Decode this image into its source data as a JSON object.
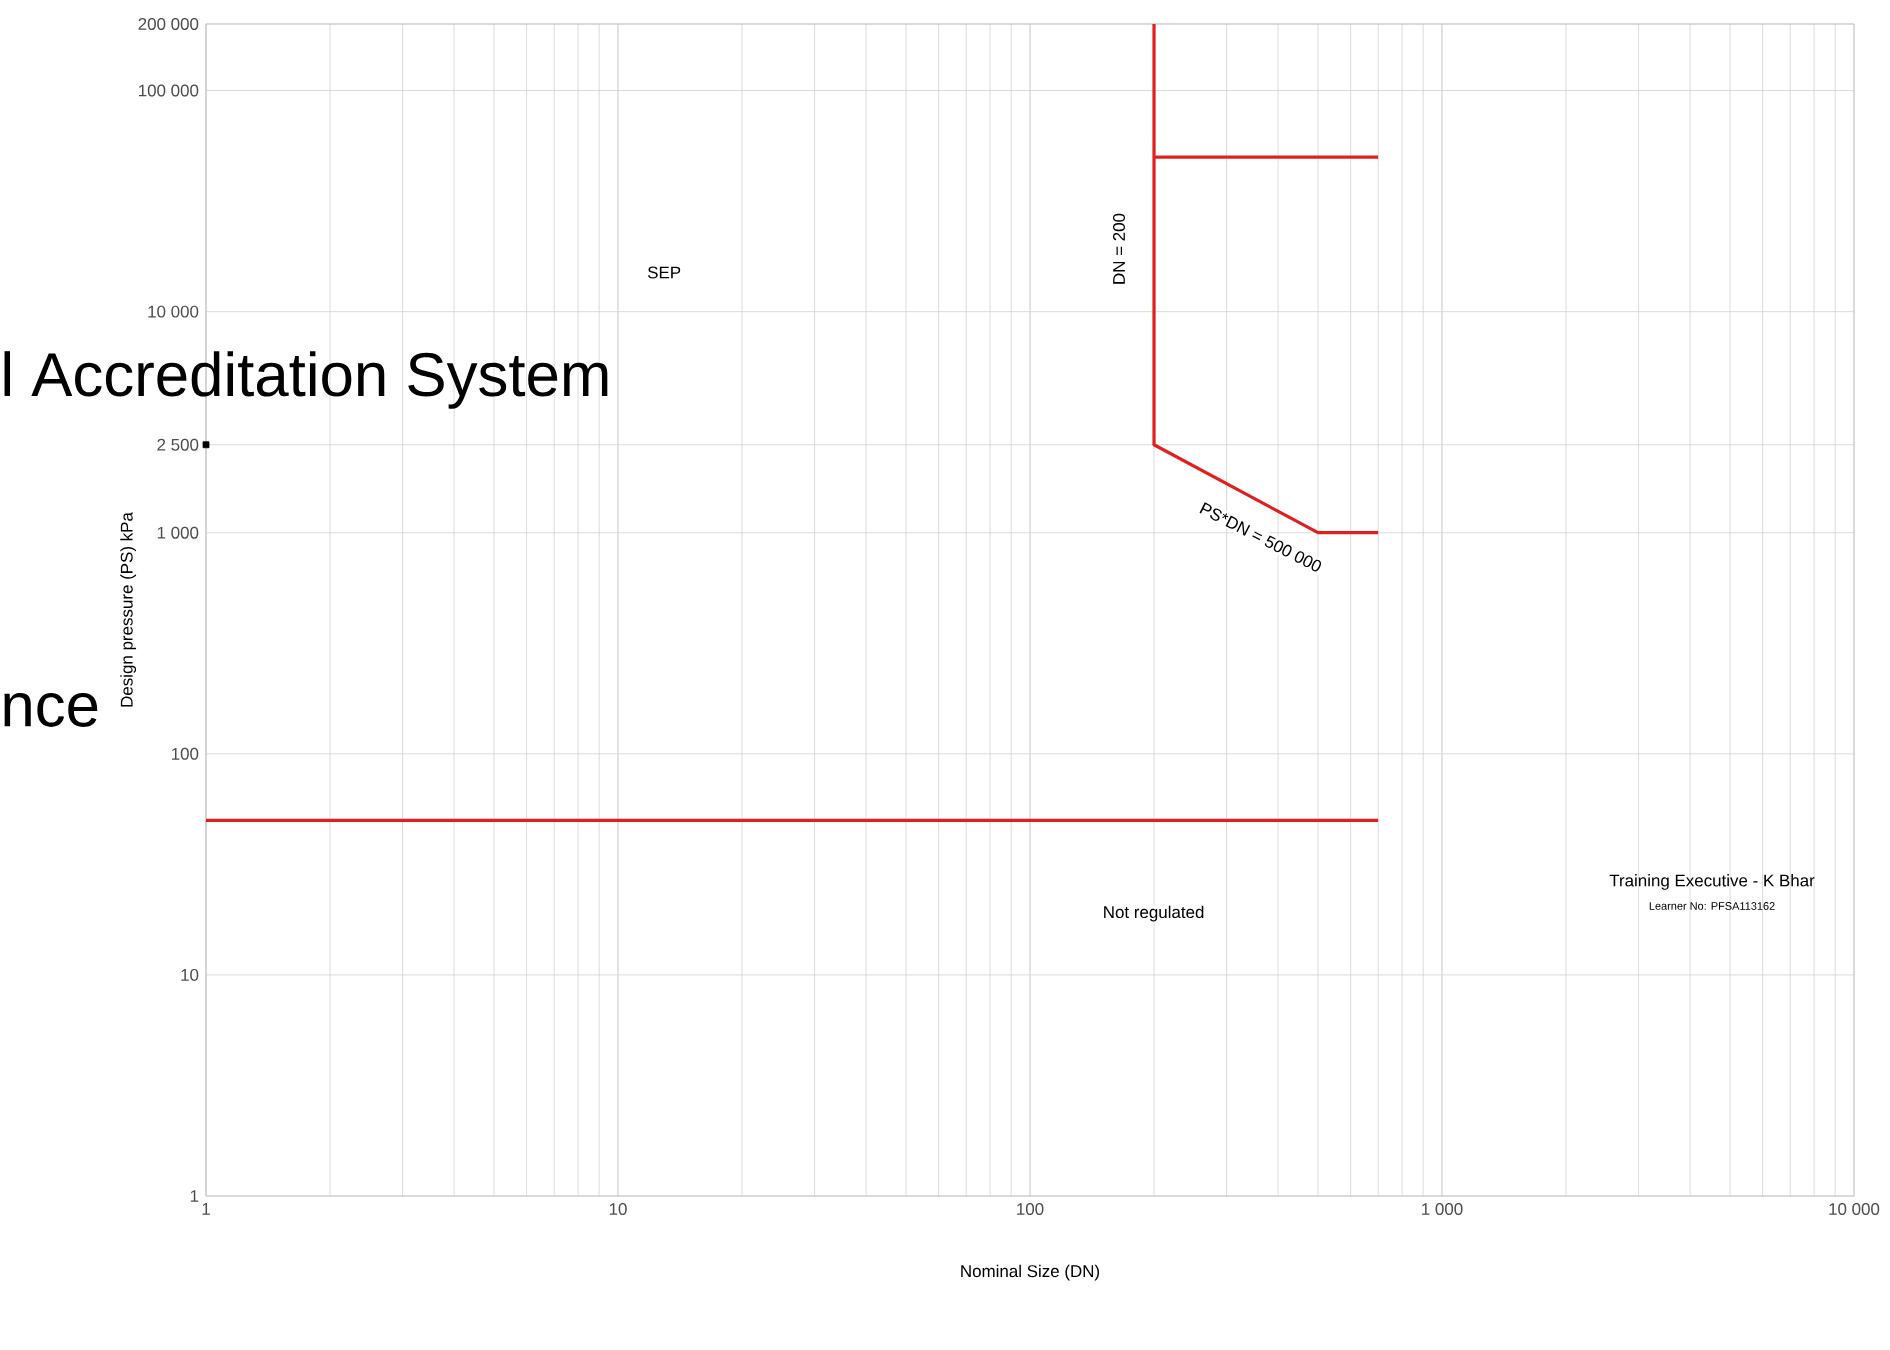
{
  "chart_data": {
    "type": "line",
    "xlabel": "Nominal Size (DN)",
    "ylabel": "Design pressure (PS) kPa",
    "log": "xy",
    "grid": true,
    "xlim": [
      1,
      10000
    ],
    "ylim": [
      1,
      200000
    ],
    "xticks": [
      1,
      10,
      100,
      {
        "value": 1000,
        "label": "1 000"
      },
      {
        "value": 10000,
        "label": "10 000"
      }
    ],
    "yticks": [
      1,
      10,
      100,
      {
        "value": 1000,
        "label": "1 000"
      },
      {
        "value": 2500,
        "label": "2 500"
      },
      {
        "value": 10000,
        "label": "10 000"
      },
      {
        "value": 100000,
        "label": "100 000"
      },
      {
        "value": 200000,
        "label": "200 000"
      }
    ],
    "series": [
      {
        "color": "#e02020",
        "x": [
          1,
          700
        ],
        "values": [
          50,
          50
        ]
      },
      {
        "color": "#e02020",
        "x": [
          200,
          200,
          500,
          700
        ],
        "values": [
          200000,
          2500,
          1000,
          1000
        ]
      },
      {
        "color": "#e02020",
        "x": [
          200,
          700
        ],
        "values": [
          50000,
          50000
        ]
      },
      {
        "type": "scatter",
        "color": "#000000",
        "marker": "square",
        "x": [
          1
        ],
        "values": [
          2500
        ]
      }
    ],
    "annotations": [
      "SEP",
      "Not regulated",
      "DN = 200",
      "PS*DN = 500 000",
      "l Accreditation System",
      "nce",
      "Training Executive - K Bhar",
      "Learner No: PFSA113162"
    ]
  }
}
